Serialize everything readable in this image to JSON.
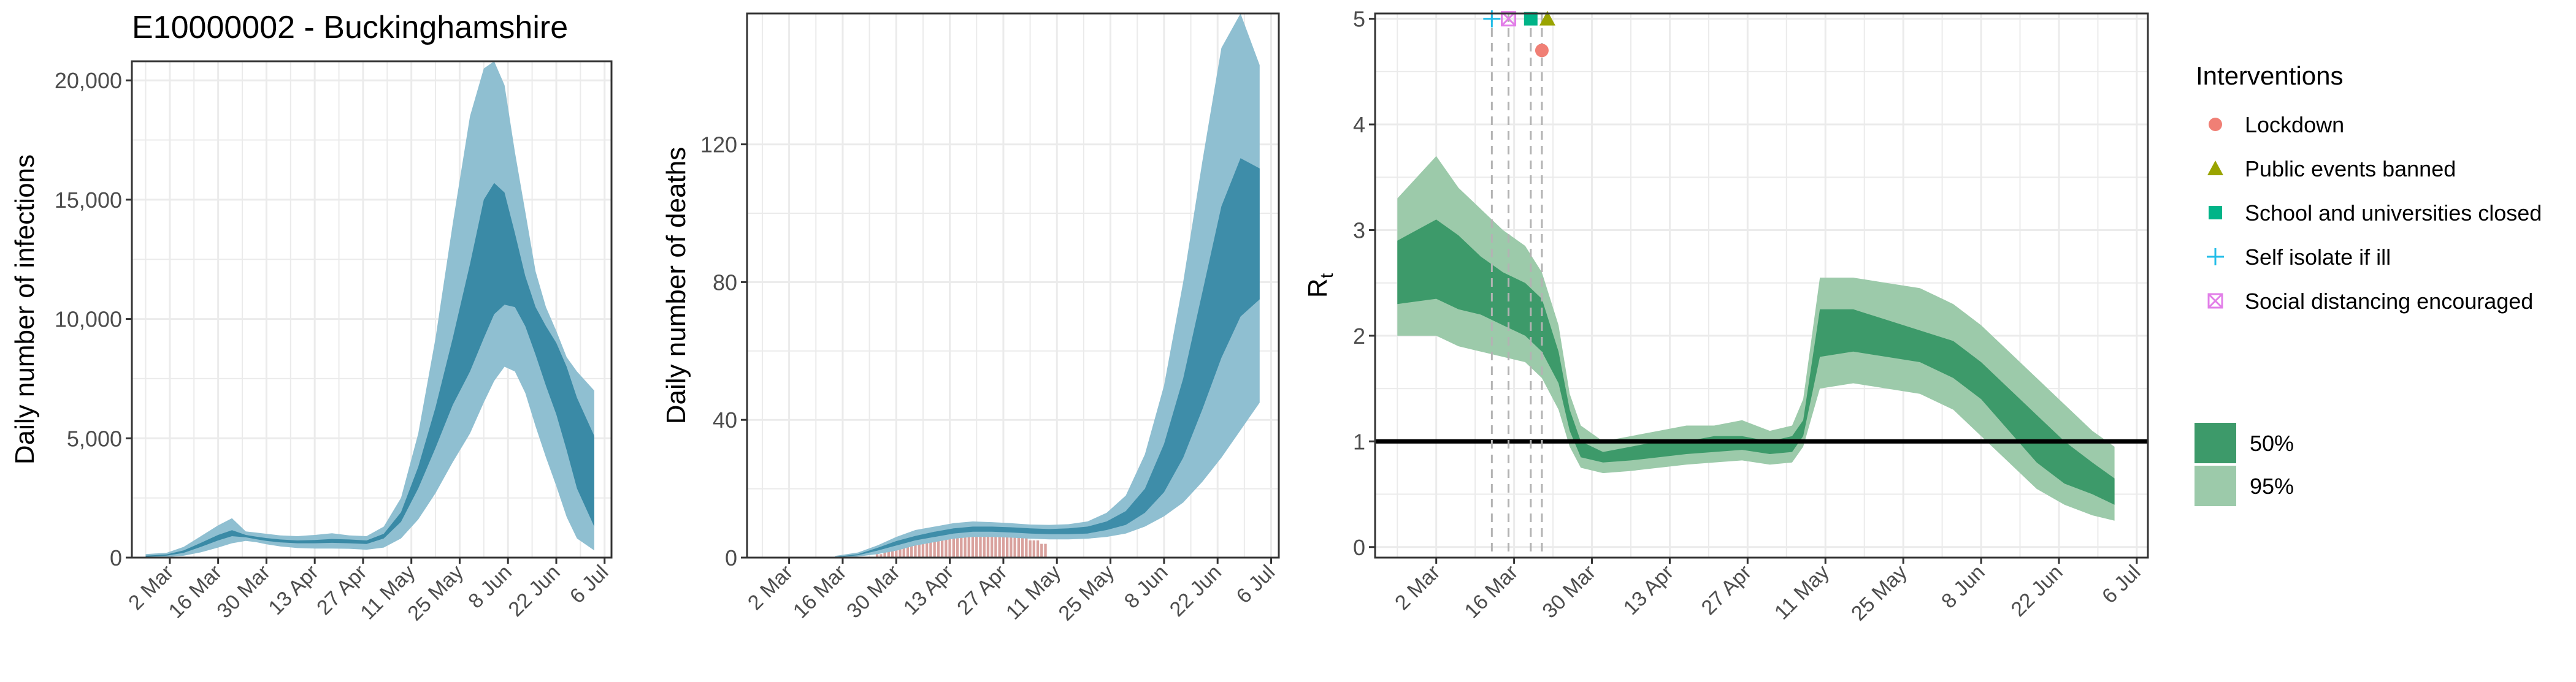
{
  "title": "E10000002 - Buckinghamshire",
  "date_ticks": [
    "2 Mar",
    "16 Mar",
    "30 Mar",
    "13 Apr",
    "27 Apr",
    "11 May",
    "25 May",
    "8 Jun",
    "22 Jun",
    "6 Jul"
  ],
  "colors": {
    "infections_50": "#3a8aa6",
    "infections_95": "#8fbfd1",
    "deaths_bar": "#d9a19d",
    "rt_50": "#3d9a6a",
    "rt_95": "#9ccaaa",
    "rt_threshold": "#000000",
    "lockdown": "#f07f75",
    "public_events": "#9aa400",
    "schools": "#00b488",
    "self_isolate": "#23bde8",
    "social_distancing": "#e27ee8",
    "grid": "#ebebeb",
    "frame": "#333333"
  },
  "legend": {
    "interventions_title": "Interventions",
    "interventions": [
      {
        "label": "Lockdown",
        "shape": "circle",
        "color_key": "lockdown"
      },
      {
        "label": "Public events banned",
        "shape": "triangle",
        "color_key": "public_events"
      },
      {
        "label": "School and universities closed",
        "shape": "square",
        "color_key": "schools"
      },
      {
        "label": "Self isolate if ill",
        "shape": "plus",
        "color_key": "self_isolate"
      },
      {
        "label": "Social distancing encouraged",
        "shape": "boxed-x",
        "color_key": "social_distancing"
      }
    ],
    "bands": [
      {
        "label": "50%",
        "color_key": "rt_50"
      },
      {
        "label": "95%",
        "color_key": "rt_95"
      }
    ]
  },
  "chart_data": [
    {
      "type": "area",
      "id": "infections",
      "title": "E10000002 - Buckinghamshire",
      "xlabel": "",
      "ylabel": "Daily number of infections",
      "x_unit": "date",
      "xlim": [
        "2020-02-20",
        "2020-07-08"
      ],
      "ylim": [
        0,
        20800
      ],
      "y_ticks": [
        0,
        5000,
        10000,
        15000,
        20000
      ],
      "y_tick_labels": [
        "0",
        "5,000",
        "10,000",
        "15,000",
        "20,000"
      ],
      "grid": true,
      "x": [
        "2020-02-24",
        "2020-03-01",
        "2020-03-06",
        "2020-03-11",
        "2020-03-16",
        "2020-03-20",
        "2020-03-24",
        "2020-03-27",
        "2020-03-30",
        "2020-04-03",
        "2020-04-08",
        "2020-04-13",
        "2020-04-18",
        "2020-04-23",
        "2020-04-28",
        "2020-05-03",
        "2020-05-08",
        "2020-05-13",
        "2020-05-18",
        "2020-05-23",
        "2020-05-28",
        "2020-06-01",
        "2020-06-04",
        "2020-06-07",
        "2020-06-10",
        "2020-06-13",
        "2020-06-16",
        "2020-06-19",
        "2020-06-22",
        "2020-06-25",
        "2020-06-28",
        "2020-07-03"
      ],
      "series": [
        {
          "band": "95%",
          "lower": [
            0,
            20,
            80,
            220,
            420,
            600,
            700,
            650,
            560,
            470,
            400,
            380,
            380,
            370,
            330,
            420,
            800,
            1600,
            2700,
            4000,
            5200,
            6500,
            7400,
            8000,
            7800,
            6900,
            5500,
            4200,
            3000,
            1700,
            800,
            300
          ],
          "upper": [
            150,
            200,
            450,
            900,
            1350,
            1650,
            1100,
            1050,
            1000,
            930,
            900,
            950,
            1020,
            930,
            900,
            1300,
            2500,
            5200,
            9200,
            14000,
            18500,
            20500,
            20800,
            19800,
            17000,
            14500,
            12000,
            10500,
            9500,
            8400,
            7800,
            7000
          ]
        },
        {
          "band": "50%",
          "lower": [
            30,
            80,
            200,
            450,
            720,
            900,
            850,
            770,
            700,
            640,
            600,
            600,
            620,
            600,
            570,
            800,
            1500,
            2900,
            4600,
            6400,
            7800,
            9200,
            10200,
            10600,
            10500,
            9700,
            8500,
            7200,
            6000,
            4500,
            2900,
            1300
          ],
          "upper": [
            80,
            130,
            300,
            620,
            950,
            1150,
            950,
            880,
            820,
            760,
            720,
            740,
            780,
            760,
            720,
            1000,
            1900,
            3800,
            6300,
            9200,
            12300,
            15000,
            15700,
            15300,
            13600,
            11800,
            10500,
            9700,
            9000,
            8000,
            6700,
            5100
          ]
        }
      ]
    },
    {
      "type": "area",
      "id": "deaths",
      "title": "",
      "xlabel": "",
      "ylabel": "Daily number of deaths",
      "x_unit": "date",
      "xlim": [
        "2020-02-20",
        "2020-07-08"
      ],
      "ylim": [
        0,
        158
      ],
      "y_ticks": [
        0,
        40,
        80,
        120
      ],
      "y_tick_labels": [
        "0",
        "40",
        "80",
        "120"
      ],
      "grid": true,
      "x": [
        "2020-03-14",
        "2020-03-20",
        "2020-03-25",
        "2020-03-30",
        "2020-04-04",
        "2020-04-09",
        "2020-04-14",
        "2020-04-19",
        "2020-04-24",
        "2020-04-29",
        "2020-05-04",
        "2020-05-09",
        "2020-05-14",
        "2020-05-19",
        "2020-05-24",
        "2020-05-29",
        "2020-06-03",
        "2020-06-08",
        "2020-06-13",
        "2020-06-18",
        "2020-06-23",
        "2020-06-28",
        "2020-07-03"
      ],
      "series": [
        {
          "band": "95%",
          "lower": [
            0,
            0.3,
            1,
            2,
            3.5,
            4.5,
            5.5,
            6,
            6,
            5.8,
            5.5,
            5.3,
            5.3,
            5.5,
            6,
            7,
            9,
            12,
            16,
            22,
            29,
            37,
            45
          ],
          "upper": [
            0.5,
            1.5,
            3.5,
            6,
            8,
            9,
            10,
            10.5,
            10.3,
            10,
            9.6,
            9.5,
            9.7,
            10.5,
            13,
            18,
            30,
            50,
            80,
            115,
            148,
            158,
            143
          ]
        },
        {
          "band": "50%",
          "lower": [
            0,
            0.7,
            2,
            3.5,
            5,
            6,
            7,
            7.5,
            7.5,
            7.3,
            7,
            6.8,
            6.8,
            7,
            8,
            9.5,
            13,
            19,
            29,
            43,
            58,
            70,
            75
          ],
          "upper": [
            0.2,
            1,
            2.8,
            4.8,
            6.3,
            7.5,
            8.5,
            9,
            9,
            8.8,
            8.5,
            8.3,
            8.5,
            9,
            10.5,
            13.5,
            20,
            33,
            52,
            77,
            102,
            116,
            113
          ]
        }
      ],
      "bars": {
        "start": "2020-03-25",
        "end": "2020-05-08",
        "values": [
          1,
          1,
          2,
          2,
          3,
          3,
          3,
          4,
          4,
          5,
          5,
          4,
          6,
          6,
          6,
          7,
          7,
          7,
          7,
          8,
          8,
          8,
          8,
          9,
          9,
          10,
          10,
          10,
          10,
          10,
          9,
          9,
          8,
          8,
          8,
          7,
          7,
          6,
          6,
          6,
          5,
          5,
          5,
          4,
          4
        ]
      }
    },
    {
      "type": "area",
      "id": "rt",
      "title": "",
      "xlabel": "",
      "ylabel": "R",
      "ylabel_subscript": "t",
      "x_unit": "date",
      "xlim": [
        "2020-02-20",
        "2020-07-08"
      ],
      "ylim": [
        -0.1,
        5.05
      ],
      "y_ticks": [
        0,
        1,
        2,
        3,
        4,
        5
      ],
      "y_tick_labels": [
        "0",
        "1",
        "2",
        "3",
        "4",
        "5"
      ],
      "grid": true,
      "hline": 1,
      "x": [
        "2020-02-24",
        "2020-03-02",
        "2020-03-06",
        "2020-03-10",
        "2020-03-14",
        "2020-03-18",
        "2020-03-21",
        "2020-03-24",
        "2020-03-26",
        "2020-03-28",
        "2020-04-01",
        "2020-04-06",
        "2020-04-11",
        "2020-04-16",
        "2020-04-21",
        "2020-04-26",
        "2020-05-01",
        "2020-05-05",
        "2020-05-07",
        "2020-05-10",
        "2020-05-16",
        "2020-05-22",
        "2020-05-28",
        "2020-06-03",
        "2020-06-08",
        "2020-06-13",
        "2020-06-18",
        "2020-06-23",
        "2020-06-28",
        "2020-07-02"
      ],
      "series": [
        {
          "band": "95%",
          "lower": [
            2.0,
            2.0,
            1.9,
            1.85,
            1.8,
            1.75,
            1.6,
            1.3,
            0.95,
            0.75,
            0.7,
            0.72,
            0.75,
            0.78,
            0.8,
            0.82,
            0.78,
            0.8,
            0.95,
            1.5,
            1.55,
            1.5,
            1.45,
            1.3,
            1.05,
            0.8,
            0.55,
            0.4,
            0.3,
            0.25
          ],
          "upper": [
            3.3,
            3.7,
            3.4,
            3.2,
            3.0,
            2.85,
            2.6,
            2.1,
            1.45,
            1.15,
            1.0,
            1.05,
            1.1,
            1.15,
            1.15,
            1.2,
            1.1,
            1.15,
            1.4,
            2.55,
            2.55,
            2.5,
            2.45,
            2.3,
            2.1,
            1.85,
            1.6,
            1.35,
            1.1,
            0.95
          ]
        },
        {
          "band": "50%",
          "lower": [
            2.3,
            2.35,
            2.25,
            2.2,
            2.1,
            2.0,
            1.85,
            1.55,
            1.1,
            0.85,
            0.8,
            0.82,
            0.85,
            0.88,
            0.9,
            0.92,
            0.88,
            0.9,
            1.05,
            1.8,
            1.85,
            1.8,
            1.75,
            1.6,
            1.4,
            1.1,
            0.8,
            0.6,
            0.5,
            0.4
          ],
          "upper": [
            2.9,
            3.1,
            2.95,
            2.75,
            2.6,
            2.5,
            2.35,
            1.85,
            1.3,
            1.0,
            0.9,
            0.95,
            1.0,
            1.0,
            1.05,
            1.05,
            1.0,
            1.05,
            1.2,
            2.25,
            2.25,
            2.15,
            2.05,
            1.95,
            1.75,
            1.5,
            1.25,
            1.0,
            0.8,
            0.65
          ]
        }
      ],
      "interventions": [
        {
          "label": "Self isolate if ill",
          "date": "2020-03-12",
          "y": 5.0
        },
        {
          "label": "Social distancing encouraged",
          "date": "2020-03-15",
          "y": 5.0
        },
        {
          "label": "School and universities closed",
          "date": "2020-03-19",
          "y": 5.0
        },
        {
          "label": "Public events banned",
          "date": "2020-03-21",
          "y": 5.0
        },
        {
          "label": "Lockdown",
          "date": "2020-03-21",
          "y": 4.7
        }
      ]
    }
  ]
}
